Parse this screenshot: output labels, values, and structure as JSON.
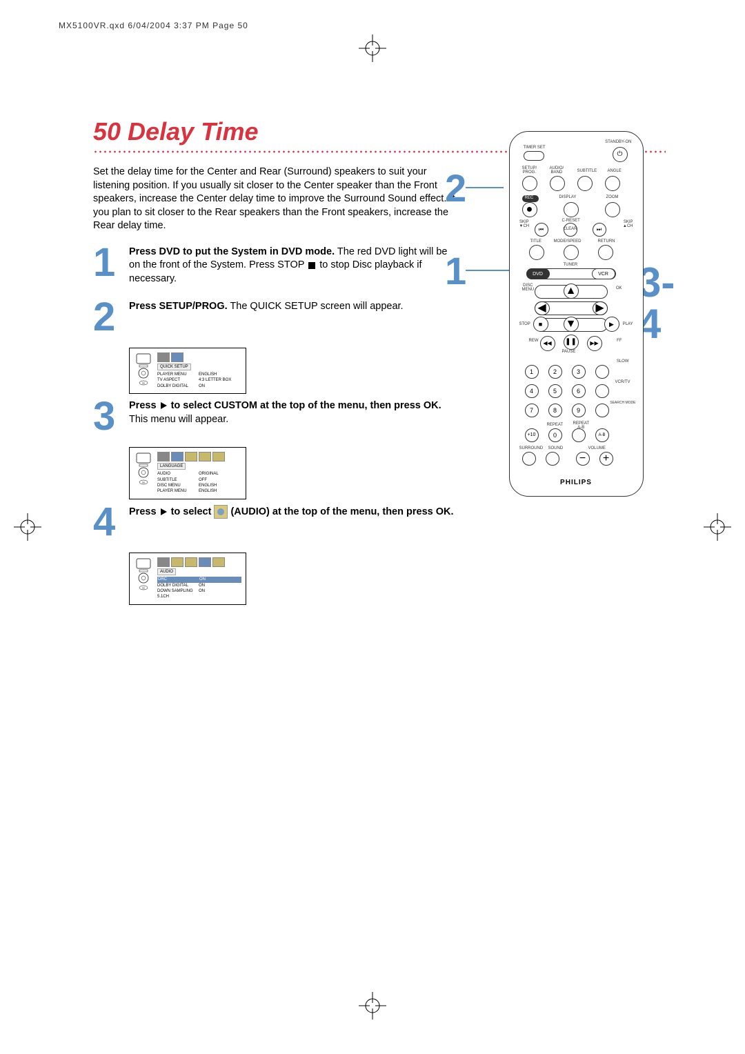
{
  "header": "MX5100VR.qxd  6/04/2004  3:37 PM  Page 50",
  "title": "50  Delay Time",
  "intro": "Set the delay time for the Center and Rear (Surround) speakers to suit your listening position. If you usually sit closer to the Center speaker than the Front speakers, increase the Center delay time to improve the Surround Sound effect. If you plan to sit closer to the Rear speakers than the Front speakers, increase the Rear delay time.",
  "steps": {
    "s1": {
      "num": "1",
      "bold": "Press DVD to put the System in DVD mode.",
      "rest": " The red DVD light will be on the front of the System. Press STOP ",
      "rest2": " to stop Disc playback if necessary."
    },
    "s2": {
      "num": "2",
      "bold": "Press SETUP/PROG.",
      "rest": " The QUICK SETUP screen will appear."
    },
    "s3": {
      "num": "3",
      "bold1": "Press ",
      "bold2": " to select CUSTOM at the top of the menu, then press OK.",
      "rest": " This menu will appear."
    },
    "s4": {
      "num": "4",
      "bold1": "Press ",
      "bold2": " to select ",
      "bold3": " (AUDIO) at the top of the menu, then press OK."
    }
  },
  "menushots": {
    "quick": {
      "title": "QUICK SETUP",
      "rows": [
        {
          "k": "PLAYER MENU",
          "v": "ENGLISH"
        },
        {
          "k": "TV ASPECT",
          "v": "4:3 LETTER BOX"
        },
        {
          "k": "DOLBY DIGITAL",
          "v": "ON"
        }
      ]
    },
    "language": {
      "title": "LANGUAGE",
      "rows": [
        {
          "k": "AUDIO",
          "v": "ORIGINAL"
        },
        {
          "k": "SUBTITLE",
          "v": "OFF"
        },
        {
          "k": "DISC MENU",
          "v": "ENGLISH"
        },
        {
          "k": "PLAYER MENU",
          "v": "ENGLISH"
        }
      ]
    },
    "audio": {
      "title": "AUDIO",
      "rows": [
        {
          "k": "DRC",
          "v": "ON",
          "hi": true
        },
        {
          "k": "DOLBY DIGITAL",
          "v": "ON"
        },
        {
          "k": "DOWN SAMPLING",
          "v": "ON"
        },
        {
          "k": "5.1CH",
          "v": ""
        }
      ]
    }
  },
  "remote": {
    "brand": "PHILIPS",
    "labels": {
      "timer_set": "TIMER SET",
      "standby": "STANDBY-ON",
      "setup": "SETUP/\nPROG.",
      "audio_band": "AUDIO/\nBAND",
      "subtitle": "SUBTITLE",
      "angle": "ANGLE",
      "rec": "REC",
      "display": "DISPLAY",
      "zoom": "ZOOM",
      "skip_dn": "SKIP\n▼CH",
      "skip_up": "SKIP\n▲CH",
      "creset": "C-RESET",
      "clear": "CLEAR",
      "title": "TITLE",
      "modespeed": "MODE/SPEED",
      "return": "RETURN",
      "tuner": "TUNER",
      "dvd": "DVD",
      "vcr": "VCR",
      "disc_menu": "DISC\nMENU",
      "ok": "OK",
      "stop": "STOP",
      "play": "PLAY",
      "rew": "REW",
      "pause": "PAUSE",
      "ff": "FF",
      "slow": "SLOW",
      "vcrtv": "VCR/TV",
      "search": "SEARCH MODE",
      "repeat": "REPEAT",
      "repeat_ab": "REPEAT\nA-B",
      "surround": "SURROUND",
      "sound": "SOUND",
      "volume": "VOLUME",
      "plus10": "+10"
    },
    "callouts": {
      "c1": "1",
      "c2": "2",
      "c34": "3-4"
    }
  }
}
